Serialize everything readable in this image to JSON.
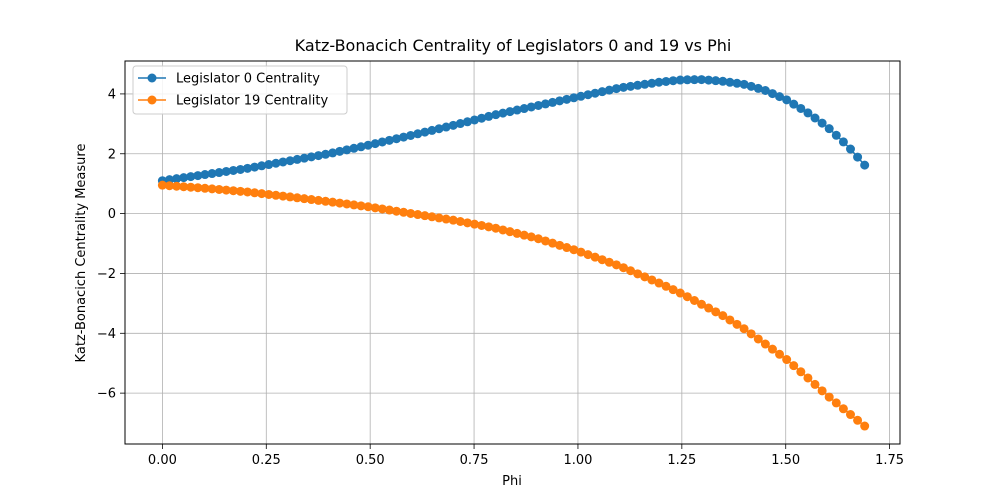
{
  "chart_data": {
    "type": "line",
    "title": "Katz-Bonacich Centrality of Legislators 0 and 19 vs Phi",
    "xlabel": "Phi",
    "ylabel": "Katz-Bonacich Centrality Measure",
    "xlim": [
      -0.09,
      1.775
    ],
    "ylim": [
      -7.7,
      5.1
    ],
    "xticks": [
      0.0,
      0.25,
      0.5,
      0.75,
      1.0,
      1.25,
      1.5,
      1.75
    ],
    "xtick_labels": [
      "0.00",
      "0.25",
      "0.50",
      "0.75",
      "1.00",
      "1.25",
      "1.50",
      "1.75"
    ],
    "yticks": [
      4,
      2,
      0,
      -2,
      -4,
      -6
    ],
    "ytick_labels": [
      "4",
      "2",
      "0",
      "−2",
      "−4",
      "−6"
    ],
    "grid": true,
    "legend_position": "top-left",
    "colors": {
      "series0": "#1f77b4",
      "series1": "#ff7f0e"
    },
    "series": [
      {
        "name": "Legislator 0 Centrality",
        "color": "#1f77b4",
        "x": [
          0.0,
          0.1,
          0.2,
          0.3,
          0.4,
          0.5,
          0.6,
          0.7,
          0.8,
          0.9,
          1.0,
          1.1,
          1.2,
          1.25,
          1.3,
          1.35,
          1.4,
          1.45,
          1.5,
          1.55,
          1.6,
          1.65,
          1.69
        ],
        "y": [
          1.1,
          1.3,
          1.5,
          1.75,
          2.0,
          2.3,
          2.62,
          2.95,
          3.3,
          3.6,
          3.9,
          4.2,
          4.4,
          4.47,
          4.48,
          4.42,
          4.32,
          4.12,
          3.82,
          3.4,
          2.9,
          2.25,
          1.62
        ]
      },
      {
        "name": "Legislator 19 Centrality",
        "color": "#ff7f0e",
        "x": [
          0.0,
          0.1,
          0.2,
          0.3,
          0.4,
          0.5,
          0.6,
          0.7,
          0.8,
          0.9,
          1.0,
          1.1,
          1.2,
          1.25,
          1.3,
          1.35,
          1.4,
          1.45,
          1.5,
          1.55,
          1.6,
          1.65,
          1.69
        ],
        "y": [
          0.95,
          0.85,
          0.73,
          0.57,
          0.4,
          0.22,
          0.0,
          -0.22,
          -0.48,
          -0.82,
          -1.25,
          -1.75,
          -2.35,
          -2.68,
          -3.05,
          -3.42,
          -3.85,
          -4.35,
          -4.85,
          -5.45,
          -6.08,
          -6.65,
          -7.1
        ]
      }
    ]
  }
}
